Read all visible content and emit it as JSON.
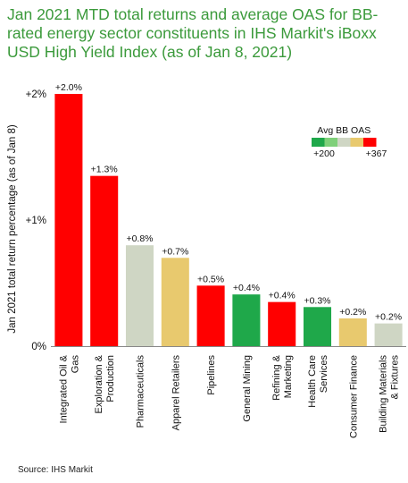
{
  "title": "Jan 2021 MTD total returns and average OAS for BB-rated energy sector constituents in IHS Markit's iBoxx USD High Yield Index (as of Jan 8, 2021)",
  "source": "Source: IHS  Markit",
  "chart_data": {
    "type": "bar",
    "ylabel": "Jan 2021 total return percentage (as of Jan 8)",
    "ylim": [
      0,
      2
    ],
    "yticks": [
      {
        "v": 0,
        "label": "0%"
      },
      {
        "v": 1,
        "label": "+1%"
      },
      {
        "v": 2,
        "label": "+2%"
      }
    ],
    "categories": [
      [
        "Integrated Oil &",
        "Gas"
      ],
      [
        "Exploration &",
        "Production"
      ],
      [
        "Pharmaceuticals"
      ],
      [
        "Apparel Retailers"
      ],
      [
        "Pipelines"
      ],
      [
        "General Mining"
      ],
      [
        "Refining &",
        "Marketing"
      ],
      [
        "Health Care",
        "Services"
      ],
      [
        "Consumer Finance"
      ],
      [
        "Building Materials",
        "& Fixtures"
      ]
    ],
    "values": [
      2.0,
      1.35,
      0.8,
      0.7,
      0.48,
      0.41,
      0.35,
      0.31,
      0.22,
      0.18
    ],
    "data_labels": [
      "+2.0%",
      "+1.3%",
      "+0.8%",
      "+0.7%",
      "+0.5%",
      "+0.4%",
      "+0.4%",
      "+0.3%",
      "+0.2%",
      "+0.2%"
    ],
    "colors": [
      "#ff0000",
      "#ff0000",
      "#cfd6c4",
      "#e8c96e",
      "#ff0000",
      "#1fa84a",
      "#ff0000",
      "#1fa84a",
      "#e8c96e",
      "#cfd6c4"
    ],
    "legend": {
      "title": "Avg BB OAS",
      "placement": "top-right",
      "colors": [
        "#1fa84a",
        "#7fd07a",
        "#cfd6c4",
        "#e8c96e",
        "#ff0000"
      ],
      "min_label": "+200",
      "max_label": "+367"
    }
  }
}
